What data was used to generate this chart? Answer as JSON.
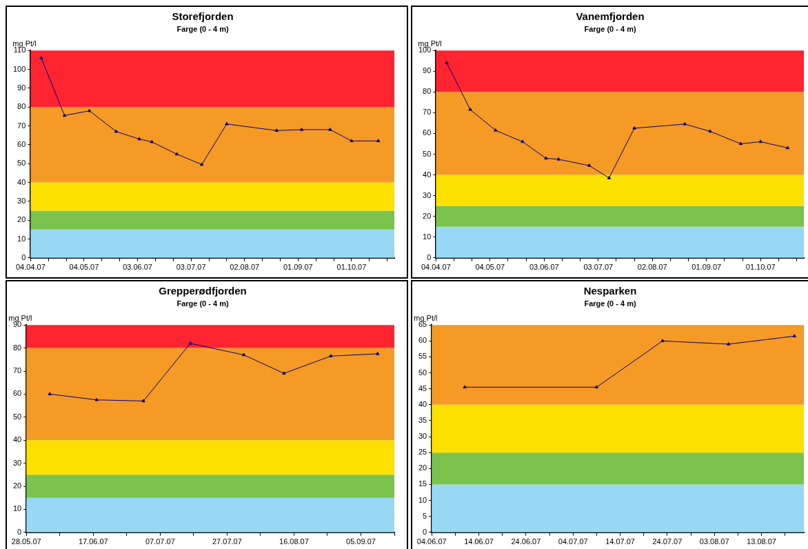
{
  "chart_data": [
    {
      "type": "line",
      "title": "Storefjorden",
      "subtitle": "Farge (0 - 4 m)",
      "ylabel": "mg Pt/l",
      "x": [
        "--04-10",
        "--04-23",
        "--05-07",
        "--05-22",
        "--06-04",
        "--06-11",
        "--06-25",
        "--07-09",
        "--07-23",
        "--08-20",
        "--09-03",
        "--09-19",
        "--10-01",
        "--10-16"
      ],
      "values": [
        106,
        75.5,
        78,
        67,
        63,
        61.5,
        55,
        49.5,
        71,
        67.5,
        68,
        68,
        62,
        62
      ],
      "color": "#000080",
      "marker": "triangle",
      "line_style": "solid",
      "grid": false,
      "legend": false,
      "xlim": [
        "--04-04",
        "--10-25"
      ],
      "xticks": [
        {
          "value": "--04-04",
          "label": "04.04.07"
        },
        {
          "value": "--04-14",
          "label": null
        },
        {
          "value": "--04-24",
          "label": null
        },
        {
          "value": "--05-04",
          "label": "04.05.07"
        },
        {
          "value": "--05-14",
          "label": null
        },
        {
          "value": "--05-24",
          "label": null
        },
        {
          "value": "--06-03",
          "label": "03.06.07"
        },
        {
          "value": "--06-13",
          "label": null
        },
        {
          "value": "--06-23",
          "label": null
        },
        {
          "value": "--07-03",
          "label": "03.07.07"
        },
        {
          "value": "--07-13",
          "label": null
        },
        {
          "value": "--07-23",
          "label": null
        },
        {
          "value": "--08-02",
          "label": "02.08.07"
        },
        {
          "value": "--08-12",
          "label": null
        },
        {
          "value": "--08-22",
          "label": null
        },
        {
          "value": "--09-01",
          "label": "01.09.07"
        },
        {
          "value": "--09-11",
          "label": null
        },
        {
          "value": "--09-21",
          "label": null
        },
        {
          "value": "--10-01",
          "label": "01.10.07"
        },
        {
          "value": "--10-11",
          "label": null
        },
        {
          "value": "--10-21",
          "label": null
        }
      ],
      "ylim": [
        0,
        110
      ],
      "yticks": [
        0,
        10,
        20,
        30,
        40,
        50,
        60,
        70,
        80,
        90,
        100,
        110
      ],
      "bands": [
        {
          "axis": "y",
          "from": 0,
          "to": 15,
          "color": "#97d9f5"
        },
        {
          "axis": "y",
          "from": 15,
          "to": 25,
          "color": "#7ac34d"
        },
        {
          "axis": "y",
          "from": 25,
          "to": 40,
          "color": "#fce000"
        },
        {
          "axis": "y",
          "from": 40,
          "to": 80,
          "color": "#f59a24"
        },
        {
          "axis": "y",
          "from": 80,
          "to": 110,
          "color": "#fe2430"
        }
      ]
    },
    {
      "type": "line",
      "title": "Vanemfjorden",
      "subtitle": "Farge (0 - 4 m)",
      "ylabel": "mg Pt/l",
      "x": [
        "--04-10",
        "--04-23",
        "--05-07",
        "--05-22",
        "--06-04",
        "--06-11",
        "--06-28",
        "--07-09",
        "--07-23",
        "--08-20",
        "--09-03",
        "--09-20",
        "--10-01",
        "--10-16"
      ],
      "values": [
        94,
        71.5,
        61.5,
        56,
        48,
        47.5,
        44.5,
        38.5,
        62.5,
        64.5,
        61,
        55,
        56,
        53
      ],
      "color": "#000080",
      "marker": "triangle",
      "line_style": "solid",
      "grid": false,
      "legend": false,
      "xlim": [
        "--04-04",
        "--10-25"
      ],
      "xticks": [
        {
          "value": "--04-04",
          "label": "04.04.07"
        },
        {
          "value": "--04-14",
          "label": null
        },
        {
          "value": "--04-24",
          "label": null
        },
        {
          "value": "--05-04",
          "label": "04.05.07"
        },
        {
          "value": "--05-14",
          "label": null
        },
        {
          "value": "--05-24",
          "label": null
        },
        {
          "value": "--06-03",
          "label": "03.06.07"
        },
        {
          "value": "--06-13",
          "label": null
        },
        {
          "value": "--06-23",
          "label": null
        },
        {
          "value": "--07-03",
          "label": "03.07.07"
        },
        {
          "value": "--07-13",
          "label": null
        },
        {
          "value": "--07-23",
          "label": null
        },
        {
          "value": "--08-02",
          "label": "02.08.07"
        },
        {
          "value": "--08-12",
          "label": null
        },
        {
          "value": "--08-22",
          "label": null
        },
        {
          "value": "--09-01",
          "label": "01.09.07"
        },
        {
          "value": "--09-11",
          "label": null
        },
        {
          "value": "--09-21",
          "label": null
        },
        {
          "value": "--10-01",
          "label": "01.10.07"
        },
        {
          "value": "--10-11",
          "label": null
        },
        {
          "value": "--10-21",
          "label": null
        }
      ],
      "ylim": [
        0,
        100
      ],
      "yticks": [
        0,
        10,
        20,
        30,
        40,
        50,
        60,
        70,
        80,
        90,
        100
      ],
      "bands": [
        {
          "axis": "y",
          "from": 0,
          "to": 15,
          "color": "#97d9f5"
        },
        {
          "axis": "y",
          "from": 15,
          "to": 25,
          "color": "#7ac34d"
        },
        {
          "axis": "y",
          "from": 25,
          "to": 40,
          "color": "#fce000"
        },
        {
          "axis": "y",
          "from": 40,
          "to": 80,
          "color": "#f59a24"
        },
        {
          "axis": "y",
          "from": 80,
          "to": 100,
          "color": "#fe2430"
        }
      ]
    },
    {
      "type": "line",
      "title": "Grepperødfjorden",
      "subtitle": "Farge (0 - 4 m)",
      "ylabel": "mg Pt/l",
      "x": [
        "--06-04",
        "--06-18",
        "--07-02",
        "--07-16",
        "--08-01",
        "--08-13",
        "--08-27",
        "--09-10"
      ],
      "values": [
        60,
        57.5,
        57,
        82,
        77,
        69,
        76.5,
        77.5
      ],
      "color": "#000080",
      "marker": "triangle",
      "line_style": "solid",
      "grid": false,
      "legend": false,
      "xlim": [
        "--05-28",
        "--09-15"
      ],
      "xticks": [
        {
          "value": "--05-28",
          "label": "28.05.07"
        },
        {
          "value": "--06-07",
          "label": null
        },
        {
          "value": "--06-17",
          "label": "17.06.07"
        },
        {
          "value": "--06-27",
          "label": null
        },
        {
          "value": "--07-07",
          "label": "07.07.07"
        },
        {
          "value": "--07-17",
          "label": null
        },
        {
          "value": "--07-27",
          "label": "27.07.07"
        },
        {
          "value": "--08-06",
          "label": null
        },
        {
          "value": "--08-16",
          "label": "16.08.07"
        },
        {
          "value": "--08-26",
          "label": null
        },
        {
          "value": "--09-05",
          "label": "05.09.07"
        },
        {
          "value": "--09-15",
          "label": null
        }
      ],
      "ylim": [
        0,
        90
      ],
      "yticks": [
        0,
        10,
        20,
        30,
        40,
        50,
        60,
        70,
        80,
        90
      ],
      "bands": [
        {
          "axis": "y",
          "from": 0,
          "to": 15,
          "color": "#97d9f5"
        },
        {
          "axis": "y",
          "from": 15,
          "to": 25,
          "color": "#7ac34d"
        },
        {
          "axis": "y",
          "from": 25,
          "to": 40,
          "color": "#fce000"
        },
        {
          "axis": "y",
          "from": 40,
          "to": 80,
          "color": "#f59a24"
        },
        {
          "axis": "y",
          "from": 80,
          "to": 90,
          "color": "#fe2430"
        }
      ]
    },
    {
      "type": "line",
      "title": "Nesparken",
      "subtitle": "Farge (0 - 4 m)",
      "ylabel": "mg Pt/l",
      "x": [
        "--06-11",
        "--07-09",
        "--07-23",
        "--08-06",
        "--08-20"
      ],
      "values": [
        45.5,
        45.5,
        60,
        59,
        61.5
      ],
      "color": "#000080",
      "marker": "triangle",
      "line_style": "solid",
      "grid": false,
      "legend": false,
      "xlim": [
        "--06-04",
        "--08-22"
      ],
      "xticks": [
        {
          "value": "--06-04",
          "label": "04.06.07"
        },
        {
          "value": "--06-09",
          "label": null
        },
        {
          "value": "--06-14",
          "label": "14.06.07"
        },
        {
          "value": "--06-19",
          "label": null
        },
        {
          "value": "--06-24",
          "label": "24.06.07"
        },
        {
          "value": "--06-29",
          "label": null
        },
        {
          "value": "--07-04",
          "label": "04.07.07"
        },
        {
          "value": "--07-09",
          "label": null
        },
        {
          "value": "--07-14",
          "label": "14.07.07"
        },
        {
          "value": "--07-19",
          "label": null
        },
        {
          "value": "--07-24",
          "label": "24.07.07"
        },
        {
          "value": "--07-29",
          "label": null
        },
        {
          "value": "--08-03",
          "label": "03.08.07"
        },
        {
          "value": "--08-08",
          "label": null
        },
        {
          "value": "--08-13",
          "label": "13.08.07"
        },
        {
          "value": "--08-18",
          "label": null
        }
      ],
      "ylim": [
        0,
        65
      ],
      "yticks": [
        0,
        5,
        10,
        15,
        20,
        25,
        30,
        35,
        40,
        45,
        50,
        55,
        60,
        65
      ],
      "bands": [
        {
          "axis": "y",
          "from": 0,
          "to": 15,
          "color": "#97d9f5"
        },
        {
          "axis": "y",
          "from": 15,
          "to": 25,
          "color": "#7ac34d"
        },
        {
          "axis": "y",
          "from": 25,
          "to": 40,
          "color": "#fce000"
        },
        {
          "axis": "y",
          "from": 40,
          "to": 65,
          "color": "#f59a24"
        }
      ]
    }
  ]
}
